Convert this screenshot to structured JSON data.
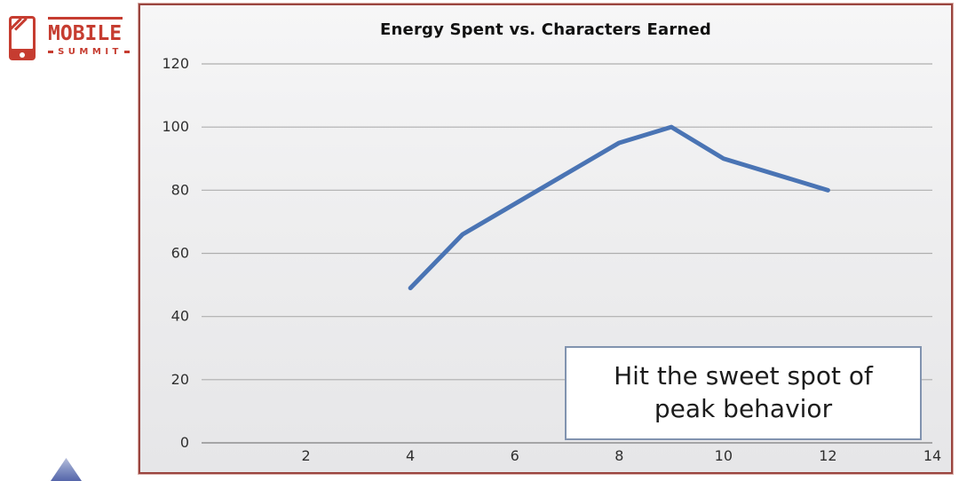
{
  "logo": {
    "mobile": "MOBILE",
    "summit": "SUMMIT",
    "brand_color": "#c63c30"
  },
  "chart": {
    "border_color": "#9a453f",
    "plot_background": "#ececee",
    "gridline_color": "#aeaeae"
  },
  "callout": {
    "lines": [
      "Hit the sweet spot of",
      "peak behavior"
    ],
    "border_color": "#8193af"
  },
  "chart_data": {
    "type": "line",
    "title": "Energy Spent vs. Characters Earned",
    "x": [
      4,
      5,
      8,
      9,
      10,
      12
    ],
    "y": [
      49,
      66,
      95,
      100,
      90,
      80
    ],
    "xlabel": "",
    "ylabel": "",
    "xlim": [
      0,
      14
    ],
    "ylim": [
      0,
      120
    ],
    "x_ticks": [
      2,
      4,
      6,
      8,
      10,
      12,
      14
    ],
    "y_ticks": [
      0,
      20,
      40,
      60,
      80,
      100,
      120
    ],
    "grid": "horizontal",
    "legend": "none",
    "line_color": "#4a74b4",
    "line_width": 5,
    "annotation": "Hit the sweet spot of peak behavior"
  }
}
